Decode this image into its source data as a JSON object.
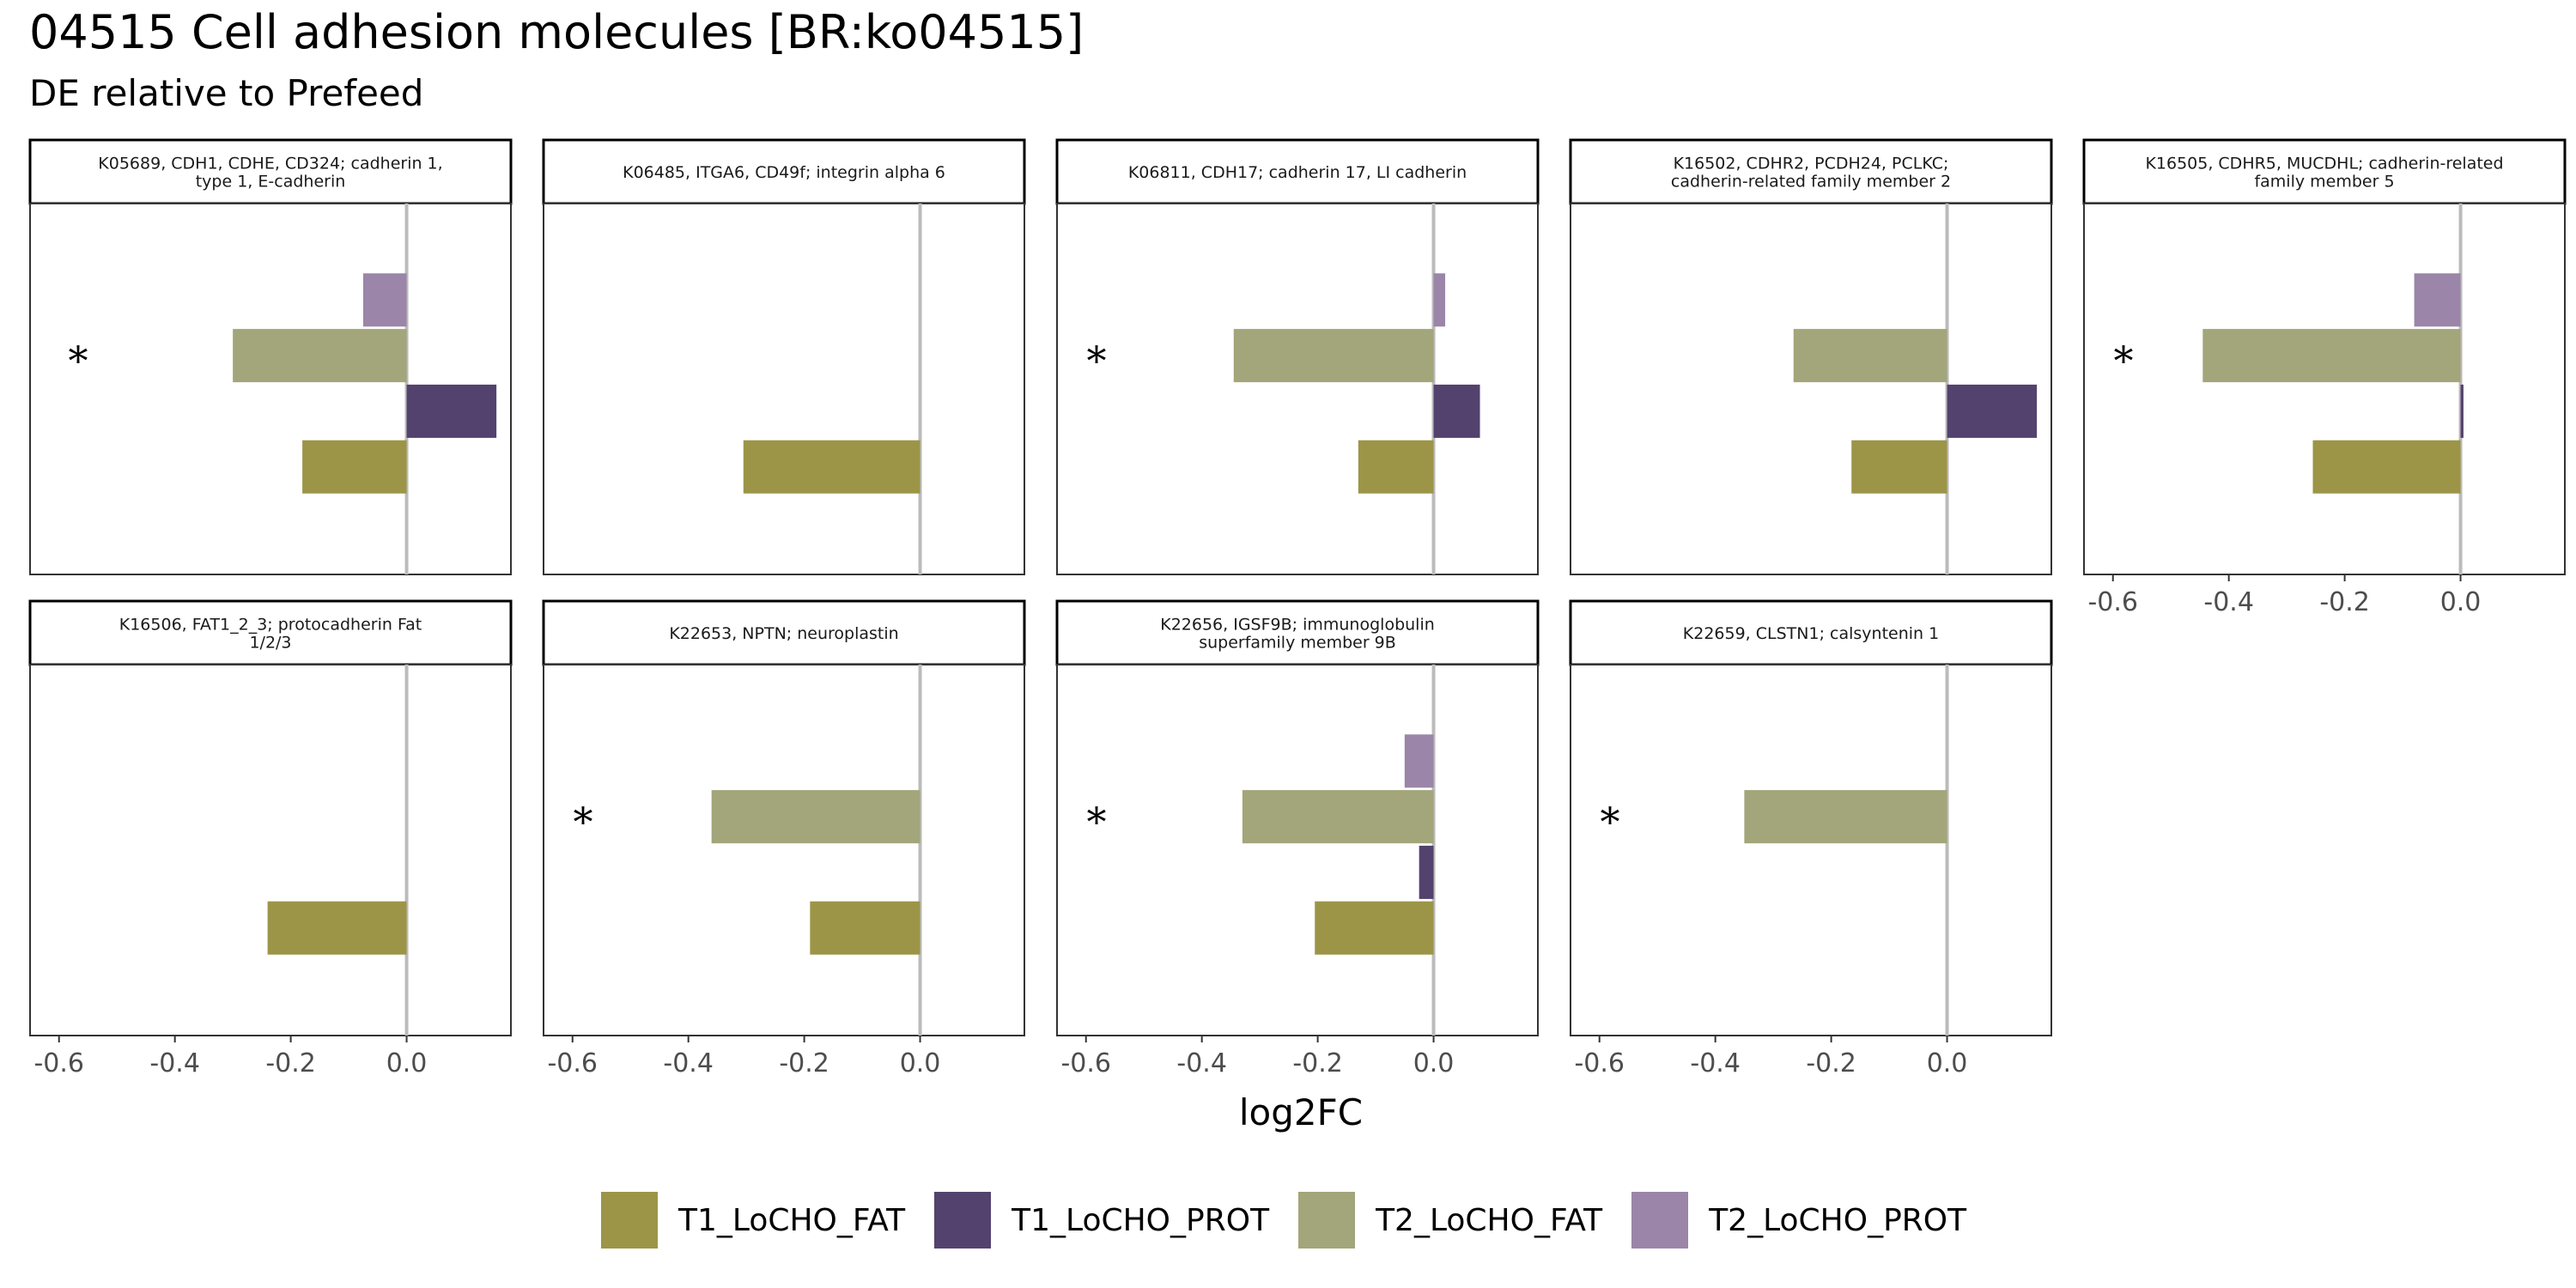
{
  "title": "04515 Cell adhesion molecules [BR:ko04515]",
  "subtitle": "DE relative to Prefeed",
  "chart_data": {
    "type": "bar",
    "orientation": "horizontal",
    "xlabel": "log2FC",
    "xlim": [
      -0.65,
      0.18
    ],
    "x_ticks": [
      -0.6,
      -0.4,
      -0.2,
      0.0
    ],
    "x_tick_labels": [
      "-0.6",
      "-0.4",
      "-0.2",
      "0.0"
    ],
    "significance_marker": "*",
    "legend_position": "bottom",
    "series": [
      {
        "name": "T1_LoCHO_FAT",
        "color": "#9c9547"
      },
      {
        "name": "T1_LoCHO_PROT",
        "color": "#53426e"
      },
      {
        "name": "T2_LoCHO_FAT",
        "color": "#a3a57a"
      },
      {
        "name": "T2_LoCHO_PROT",
        "color": "#9b85a8"
      }
    ],
    "panels": [
      {
        "label": "K05689, CDH1, CDHE, CD324; cadherin 1, type 1, E-cadherin",
        "label_lines": [
          "K05689, CDH1, CDHE, CD324; cadherin 1,",
          "type 1, E-cadherin"
        ],
        "values": {
          "T1_LoCHO_FAT": -0.18,
          "T1_LoCHO_PROT": 0.155,
          "T2_LoCHO_FAT": -0.3,
          "T2_LoCHO_PROT": -0.075
        },
        "significant": true
      },
      {
        "label": "K06485, ITGA6, CD49f; integrin alpha 6",
        "label_lines": [
          "K06485, ITGA6, CD49f; integrin alpha 6"
        ],
        "values": {
          "T1_LoCHO_FAT": -0.305
        },
        "significant": false
      },
      {
        "label": "K06811, CDH17; cadherin 17, LI cadherin",
        "label_lines": [
          "K06811, CDH17; cadherin 17, LI cadherin"
        ],
        "values": {
          "T1_LoCHO_FAT": -0.13,
          "T1_LoCHO_PROT": 0.08,
          "T2_LoCHO_FAT": -0.345,
          "T2_LoCHO_PROT": 0.02
        },
        "significant": true
      },
      {
        "label": "K16502, CDHR2, PCDH24, PCLKC; cadherin-related family member 2",
        "label_lines": [
          "K16502, CDHR2, PCDH24, PCLKC;",
          "cadherin-related family member 2"
        ],
        "values": {
          "T1_LoCHO_FAT": -0.165,
          "T1_LoCHO_PROT": 0.155,
          "T2_LoCHO_FAT": -0.265
        },
        "significant": false
      },
      {
        "label": "K16505, CDHR5, MUCDHL; cadherin-related family member 5",
        "label_lines": [
          "K16505, CDHR5, MUCDHL; cadherin-related",
          "family member 5"
        ],
        "values": {
          "T1_LoCHO_FAT": -0.255,
          "T1_LoCHO_PROT": 0.005,
          "T2_LoCHO_FAT": -0.445,
          "T2_LoCHO_PROT": -0.08
        },
        "significant": true
      },
      {
        "label": "K16506, FAT1_2_3; protocadherin Fat 1/2/3",
        "label_lines": [
          "K16506, FAT1_2_3; protocadherin Fat",
          "1/2/3"
        ],
        "values": {
          "T1_LoCHO_FAT": -0.24
        },
        "significant": false
      },
      {
        "label": "K22653, NPTN; neuroplastin",
        "label_lines": [
          "K22653, NPTN; neuroplastin"
        ],
        "values": {
          "T1_LoCHO_FAT": -0.19,
          "T2_LoCHO_FAT": -0.36
        },
        "significant": true
      },
      {
        "label": "K22656, IGSF9B; immunoglobulin superfamily member 9B",
        "label_lines": [
          "K22656, IGSF9B; immunoglobulin",
          "superfamily member 9B"
        ],
        "values": {
          "T1_LoCHO_FAT": -0.205,
          "T1_LoCHO_PROT": -0.025,
          "T2_LoCHO_FAT": -0.33,
          "T2_LoCHO_PROT": -0.05
        },
        "significant": true
      },
      {
        "label": "K22659, CLSTN1; calsyntenin 1",
        "label_lines": [
          "K22659, CLSTN1; calsyntenin 1"
        ],
        "values": {
          "T2_LoCHO_FAT": -0.35
        },
        "significant": true
      }
    ]
  }
}
